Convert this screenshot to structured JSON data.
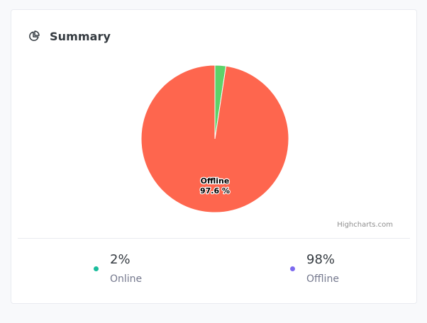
{
  "card": {
    "title": "Summary",
    "icon": "pie-chart-icon"
  },
  "chart_data": {
    "type": "pie",
    "title": "",
    "slices": [
      {
        "name": "Online",
        "value": 2.4,
        "color": "#5dd26a"
      },
      {
        "name": "Offline",
        "value": 97.6,
        "color": "#fe664e"
      }
    ],
    "data_label": {
      "name": "Offline",
      "value_text": "97.6 %"
    }
  },
  "credits": "Highcharts.com",
  "stats": {
    "online": {
      "value": "2%",
      "label": "Online",
      "dot_color": "#1abc9c"
    },
    "offline": {
      "value": "98%",
      "label": "Offline",
      "dot_color": "#7c69ef"
    }
  },
  "colors": {
    "card_bg": "#ffffff",
    "page_bg": "#f8f9fb",
    "text_dark": "#343a40",
    "text_muted": "#74788d"
  }
}
